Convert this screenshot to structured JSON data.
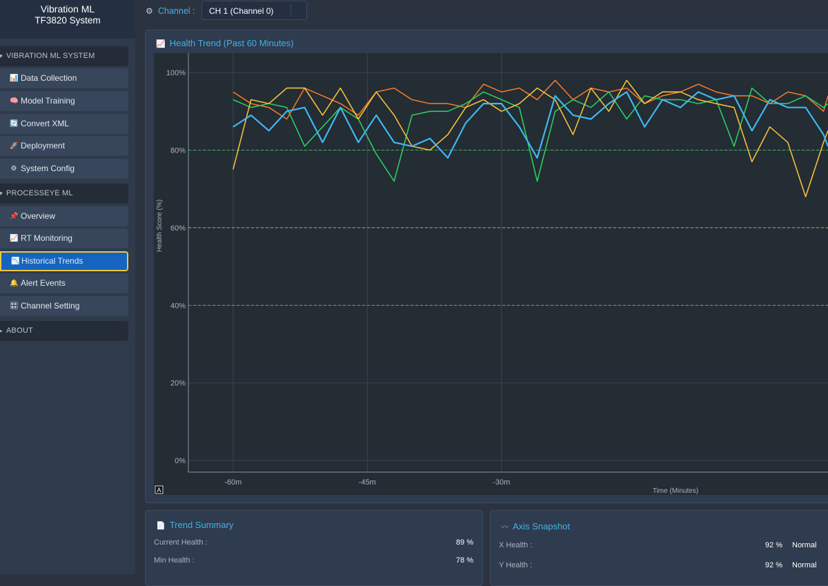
{
  "sidebar": {
    "brand_line1": "Vibration ML",
    "brand_line2": "TF3820 System",
    "section1": "VIBRATION ML SYSTEM",
    "section2": "PROCESSEYE ML",
    "section3": "ABOUT",
    "items": [
      {
        "label": "Data Collection",
        "icon": "chart-icon",
        "glyph": "📊"
      },
      {
        "label": "Model Training",
        "icon": "brain-icon",
        "glyph": "🧠"
      },
      {
        "label": "Convert XML",
        "icon": "convert-icon",
        "glyph": "🔄"
      },
      {
        "label": "Deployment",
        "icon": "rocket-icon",
        "glyph": "🚀"
      },
      {
        "label": "System Config",
        "icon": "gear-icon",
        "glyph": "⚙"
      },
      {
        "label": "Overview",
        "icon": "pin-icon",
        "glyph": "📌"
      },
      {
        "label": "RT Monitoring",
        "icon": "line-chart-icon",
        "glyph": "📈"
      },
      {
        "label": "Historical Trends",
        "icon": "trend-down-icon",
        "glyph": "📉"
      },
      {
        "label": "Alert Events",
        "icon": "bell-icon",
        "glyph": "🔔"
      },
      {
        "label": "Channel Setting",
        "icon": "grid-icon",
        "glyph": "🎛"
      }
    ],
    "active_item": "Historical Trends"
  },
  "topbar": {
    "channel_label": "Channel :",
    "channel_value": "CH 1 (Channel 0)"
  },
  "trend_panel": {
    "title": "Health Trend (Past 60 Minutes)",
    "badge": "A"
  },
  "chart_data": {
    "type": "line",
    "title": "Health Trend (Past 60 Minutes)",
    "xlabel": "Time (Minutes)",
    "ylabel": "Health Score (%)",
    "x": [
      -60,
      -58,
      -56,
      -54,
      -52,
      -50,
      -48,
      -46,
      -44,
      -42,
      -40,
      -38,
      -36,
      -34,
      -32,
      -30,
      -28,
      -26,
      -24,
      -22,
      -20,
      -18,
      -16,
      -14,
      -12,
      -10,
      -8,
      -6,
      -4,
      -2,
      0,
      2,
      4,
      6,
      6.5
    ],
    "xlim": [
      -65,
      6.5
    ],
    "ylim": [
      -3,
      105
    ],
    "x_ticks": [
      -60,
      -45,
      -30
    ],
    "x_tick_labels": [
      "-60m",
      "-45m",
      "-30m"
    ],
    "y_ticks": [
      0,
      20,
      40,
      60,
      80,
      100
    ],
    "y_tick_labels": [
      "0%",
      "20%",
      "40%",
      "60%",
      "80%",
      "100%"
    ],
    "thresholds": [
      {
        "value": 80,
        "color": "#2fbf5a"
      },
      {
        "value": 60,
        "color": "#e0a020"
      },
      {
        "value": 40,
        "color": "#e07a20"
      }
    ],
    "grid": true,
    "series": [
      {
        "color": "#f07828",
        "values": [
          95,
          92,
          91,
          88,
          96,
          94,
          92,
          89,
          95,
          96,
          93,
          92,
          92,
          91,
          97,
          95,
          96,
          93,
          98,
          93,
          96,
          95,
          96,
          92,
          94,
          95,
          97,
          95,
          94,
          94,
          92,
          95,
          94,
          90,
          94
        ]
      },
      {
        "color": "#2ecc5f",
        "values": [
          93,
          91,
          92,
          91,
          81,
          86,
          91,
          88,
          79,
          72,
          89,
          90,
          90,
          92,
          95,
          93,
          91,
          72,
          90,
          93,
          91,
          95,
          88,
          94,
          93,
          93,
          92,
          93,
          81,
          96,
          92,
          92,
          94,
          91,
          92
        ]
      },
      {
        "color": "#f5c03a",
        "values": [
          75,
          93,
          92,
          96,
          96,
          89,
          96,
          88,
          95,
          89,
          81,
          80,
          84,
          91,
          93,
          90,
          92,
          96,
          93,
          84,
          96,
          90,
          98,
          92,
          95,
          95,
          93,
          92,
          91,
          77,
          86,
          82,
          68,
          82,
          85
        ]
      },
      {
        "color": "#40b8f0",
        "values": [
          86,
          89,
          85,
          90,
          91,
          82,
          91,
          82,
          89,
          82,
          81,
          83,
          78,
          87,
          92,
          92,
          86,
          78,
          94,
          89,
          88,
          92,
          95,
          86,
          93,
          91,
          95,
          93,
          94,
          85,
          93,
          91,
          91,
          84,
          81
        ]
      }
    ]
  },
  "summary": {
    "title": "Trend Summary",
    "rows": [
      {
        "label": "Current Health :",
        "value": "89 %"
      },
      {
        "label": "Min Health :",
        "value": "78 %"
      }
    ]
  },
  "snapshot": {
    "title": "Axis Snapshot",
    "rows": [
      {
        "label": "X Health :",
        "value": "92 %",
        "status": "Normal"
      },
      {
        "label": "Y Health :",
        "value": "92 %",
        "status": "Normal"
      }
    ]
  }
}
